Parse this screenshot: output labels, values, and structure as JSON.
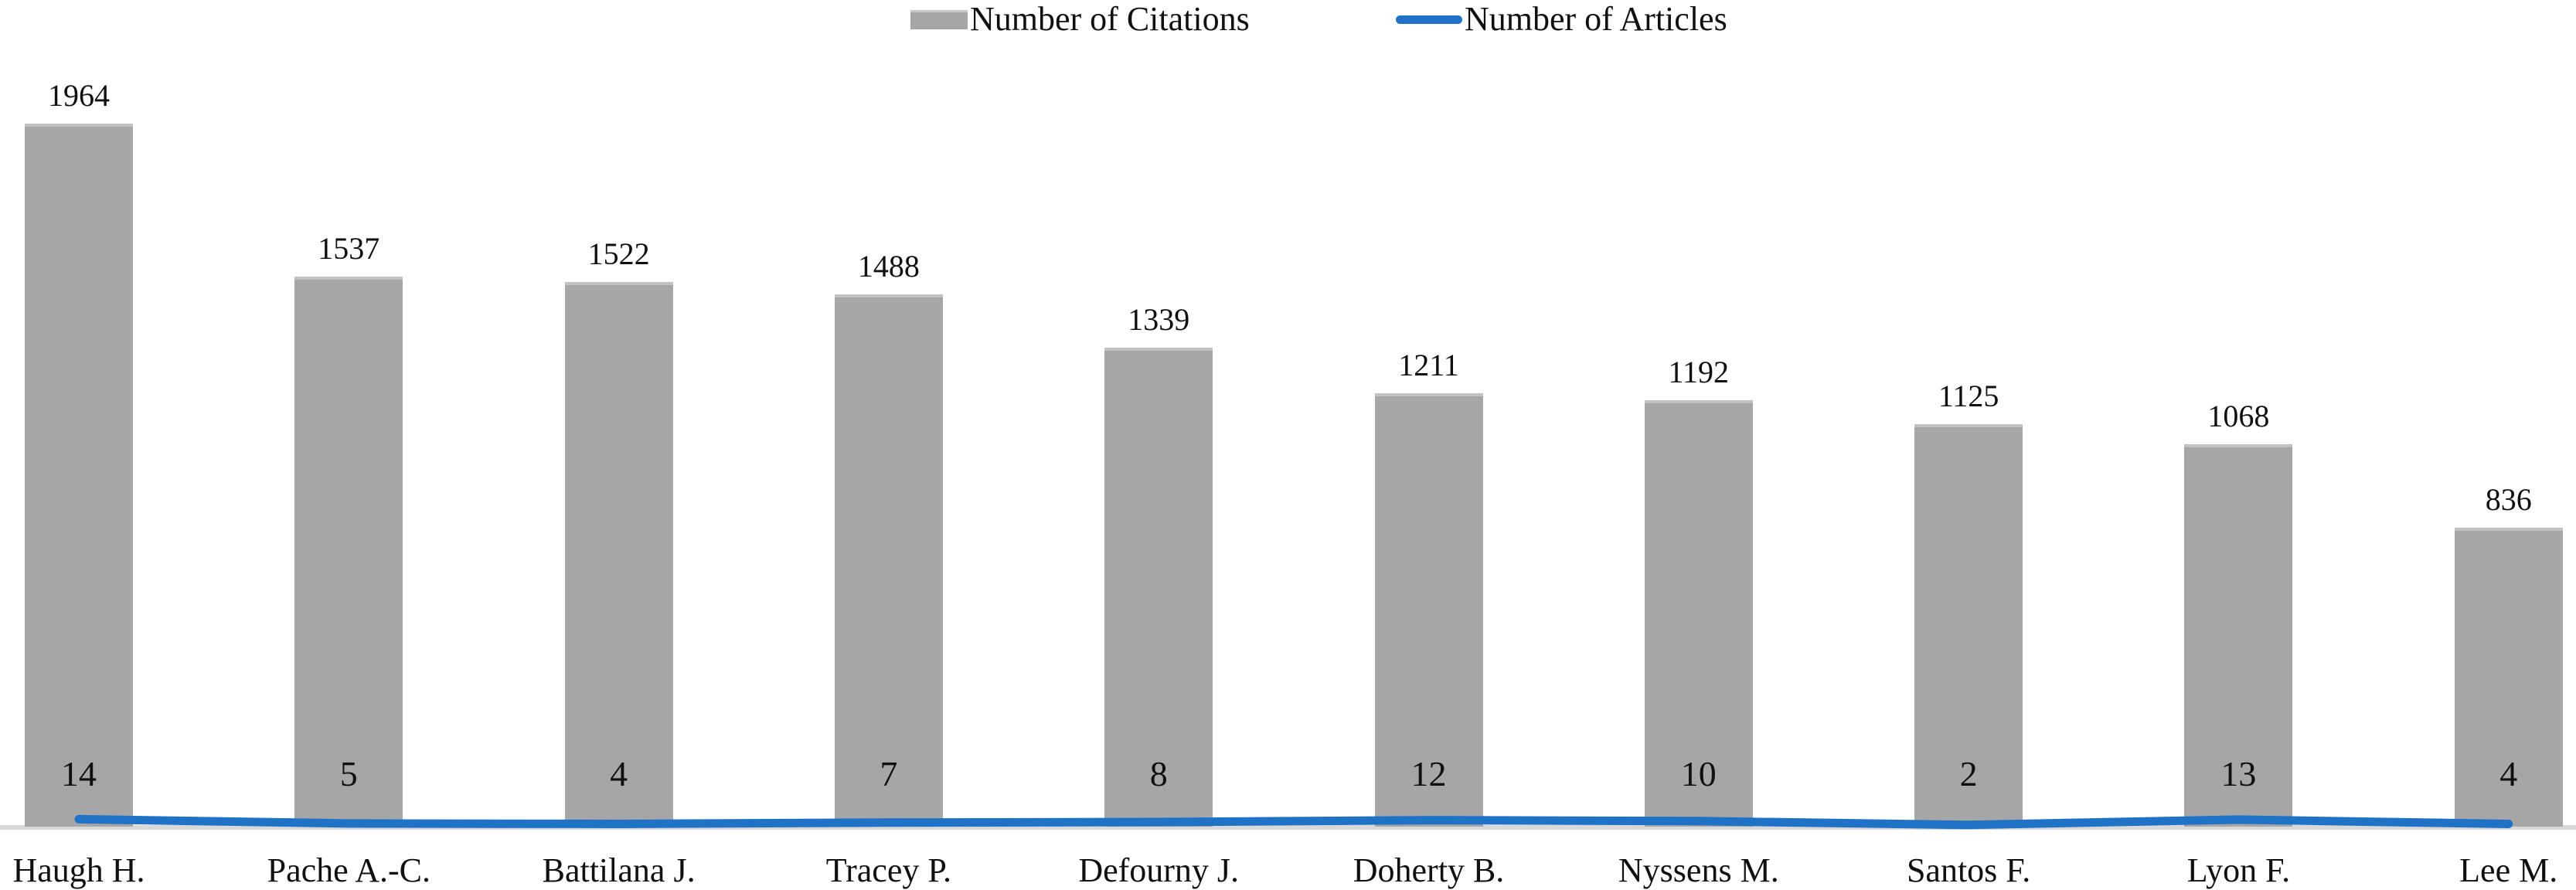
{
  "legend": {
    "citations_label": "Number of Citations",
    "articles_label": "Number of Articles"
  },
  "colors": {
    "bar_fill": "#a6a6a6",
    "bar_top_edge": "#c2c2c2",
    "line_blue": "#1f72c6",
    "baseline_gray": "#d9d9d9",
    "text": "#101010"
  },
  "chart_data": {
    "type": "bar",
    "title": "",
    "xlabel": "",
    "ylabel": "",
    "axes_hidden": true,
    "gridlines": false,
    "legend_position": "top-center",
    "categories": [
      "Haugh H.",
      "Pache A.-C.",
      "Battilana J.",
      "Tracey P.",
      "Defourny J.",
      "Doherty B.",
      "Nyssens M.",
      "Santos F.",
      "Lyon F.",
      "Lee M."
    ],
    "series": [
      {
        "name": "Number of Citations",
        "type": "bar",
        "color": "#a6a6a6",
        "values": [
          1964,
          1537,
          1522,
          1488,
          1339,
          1211,
          1192,
          1125,
          1068,
          836
        ],
        "label_position": "above-bar"
      },
      {
        "name": "Number of Articles",
        "type": "line",
        "color": "#1f72c6",
        "values": [
          14,
          5,
          4,
          7,
          8,
          12,
          10,
          2,
          13,
          4
        ],
        "label_position": "inside-bar-near-base"
      }
    ]
  }
}
